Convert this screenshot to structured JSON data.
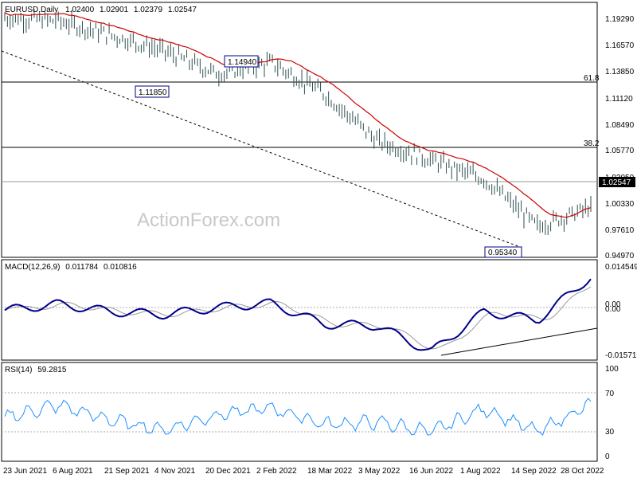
{
  "price_panel": {
    "header": {
      "symbol": "EURUSD,Daily",
      "open": "1.02400",
      "high": "1.02901",
      "low": "1.02379",
      "close": "1.02547"
    },
    "watermark": "ActionForex.com",
    "y_ticks": [
      "1.19290",
      "1.16570",
      "1.13850",
      "1.11120",
      "1.08490",
      "1.05770",
      "1.03050",
      "1.00330",
      "0.97610",
      "0.94970"
    ],
    "current_price_label": "1.02547",
    "fib_labels": {
      "fib_618": "61.8",
      "fib_382": "38.2"
    },
    "annotations": {
      "ann_1_1185": "1.11850",
      "ann_1_1494": "1.14940",
      "ann_0_9534": "0.95340"
    }
  },
  "macd_panel": {
    "header": {
      "name": "MACD(12,26,9)",
      "macd": "0.011784",
      "signal": "0.010816"
    },
    "y_ticks": {
      "top": "0.014549",
      "zero": "0.00",
      "zero2": "0.00",
      "bottom": "-0.015712"
    }
  },
  "rsi_panel": {
    "header": {
      "name": "RSI(14)",
      "value": "59.2815"
    },
    "y_ticks": [
      "100",
      "70",
      "30",
      "0"
    ]
  },
  "x_ticks": [
    "23 Jun 2021",
    "6 Aug 2021",
    "21 Sep 2021",
    "4 Nov 2021",
    "20 Dec 2021",
    "2 Feb 2022",
    "18 Mar 2022",
    "3 May 2022",
    "16 Jun 2022",
    "1 Aug 2022",
    "14 Sep 2022",
    "28 Oct 2022"
  ],
  "chart_data": [
    {
      "type": "line",
      "title": "EURUSD,Daily",
      "x": [
        "23 Jun 2021",
        "6 Aug 2021",
        "21 Sep 2021",
        "4 Nov 2021",
        "20 Dec 2021",
        "2 Feb 2022",
        "18 Mar 2022",
        "3 May 2022",
        "16 Jun 2022",
        "1 Aug 2022",
        "14 Sep 2022",
        "28 Oct 2022"
      ],
      "series": [
        {
          "values": [
            1.19,
            1.187,
            1.172,
            1.155,
            1.131,
            1.143,
            1.11,
            1.06,
            1.04,
            1.02,
            0.97,
            0.99
          ]
        }
      ],
      "ylim": [
        0.94,
        1.205
      ],
      "current_close": 1.02547,
      "horizontal_levels": [
        1.1305,
        1.0577,
        1.0305
      ],
      "fib_level_labels": [
        "61.8",
        "38.2"
      ],
      "annotated_points": [
        1.1185,
        1.1494,
        0.9534
      ],
      "colors": {
        "price": "#2f4f4f",
        "moving_average": "#cc0000",
        "trendline": "#000000"
      }
    },
    {
      "type": "line",
      "title": "MACD(12,26,9)",
      "x": [
        "23 Jun 2021",
        "6 Aug 2021",
        "21 Sep 2021",
        "4 Nov 2021",
        "20 Dec 2021",
        "2 Feb 2022",
        "18 Mar 2022",
        "3 May 2022",
        "16 Jun 2022",
        "1 Aug 2022",
        "14 Sep 2022",
        "28 Oct 2022"
      ],
      "series": [
        {
          "values": [
            -0.0005,
            0.0017,
            -0.001,
            -0.002,
            0.0005,
            0.002,
            -0.0055,
            -0.006,
            -0.0155,
            -0.001,
            -0.004,
            0.0115
          ]
        }
      ],
      "ylim": [
        -0.0178,
        0.0165
      ],
      "macd_value": 0.011784,
      "signal_value": 0.010816,
      "colors": {
        "macd": "#00008b",
        "signal": "#999999"
      }
    },
    {
      "type": "line",
      "title": "RSI(14)",
      "x": [
        "23 Jun 2021",
        "6 Aug 2021",
        "21 Sep 2021",
        "4 Nov 2021",
        "20 Dec 2021",
        "2 Feb 2022",
        "18 Mar 2022",
        "3 May 2022",
        "16 Jun 2022",
        "1 Aug 2022",
        "14 Sep 2022",
        "28 Oct 2022"
      ],
      "series": [
        {
          "values": [
            45,
            58,
            42,
            32,
            48,
            55,
            38,
            40,
            30,
            54,
            30,
            59
          ]
        }
      ],
      "ylim": [
        0,
        100
      ],
      "levels": [
        70,
        30
      ],
      "current_value": 59.2815,
      "colors": {
        "rsi": "#1e90ff"
      }
    }
  ]
}
